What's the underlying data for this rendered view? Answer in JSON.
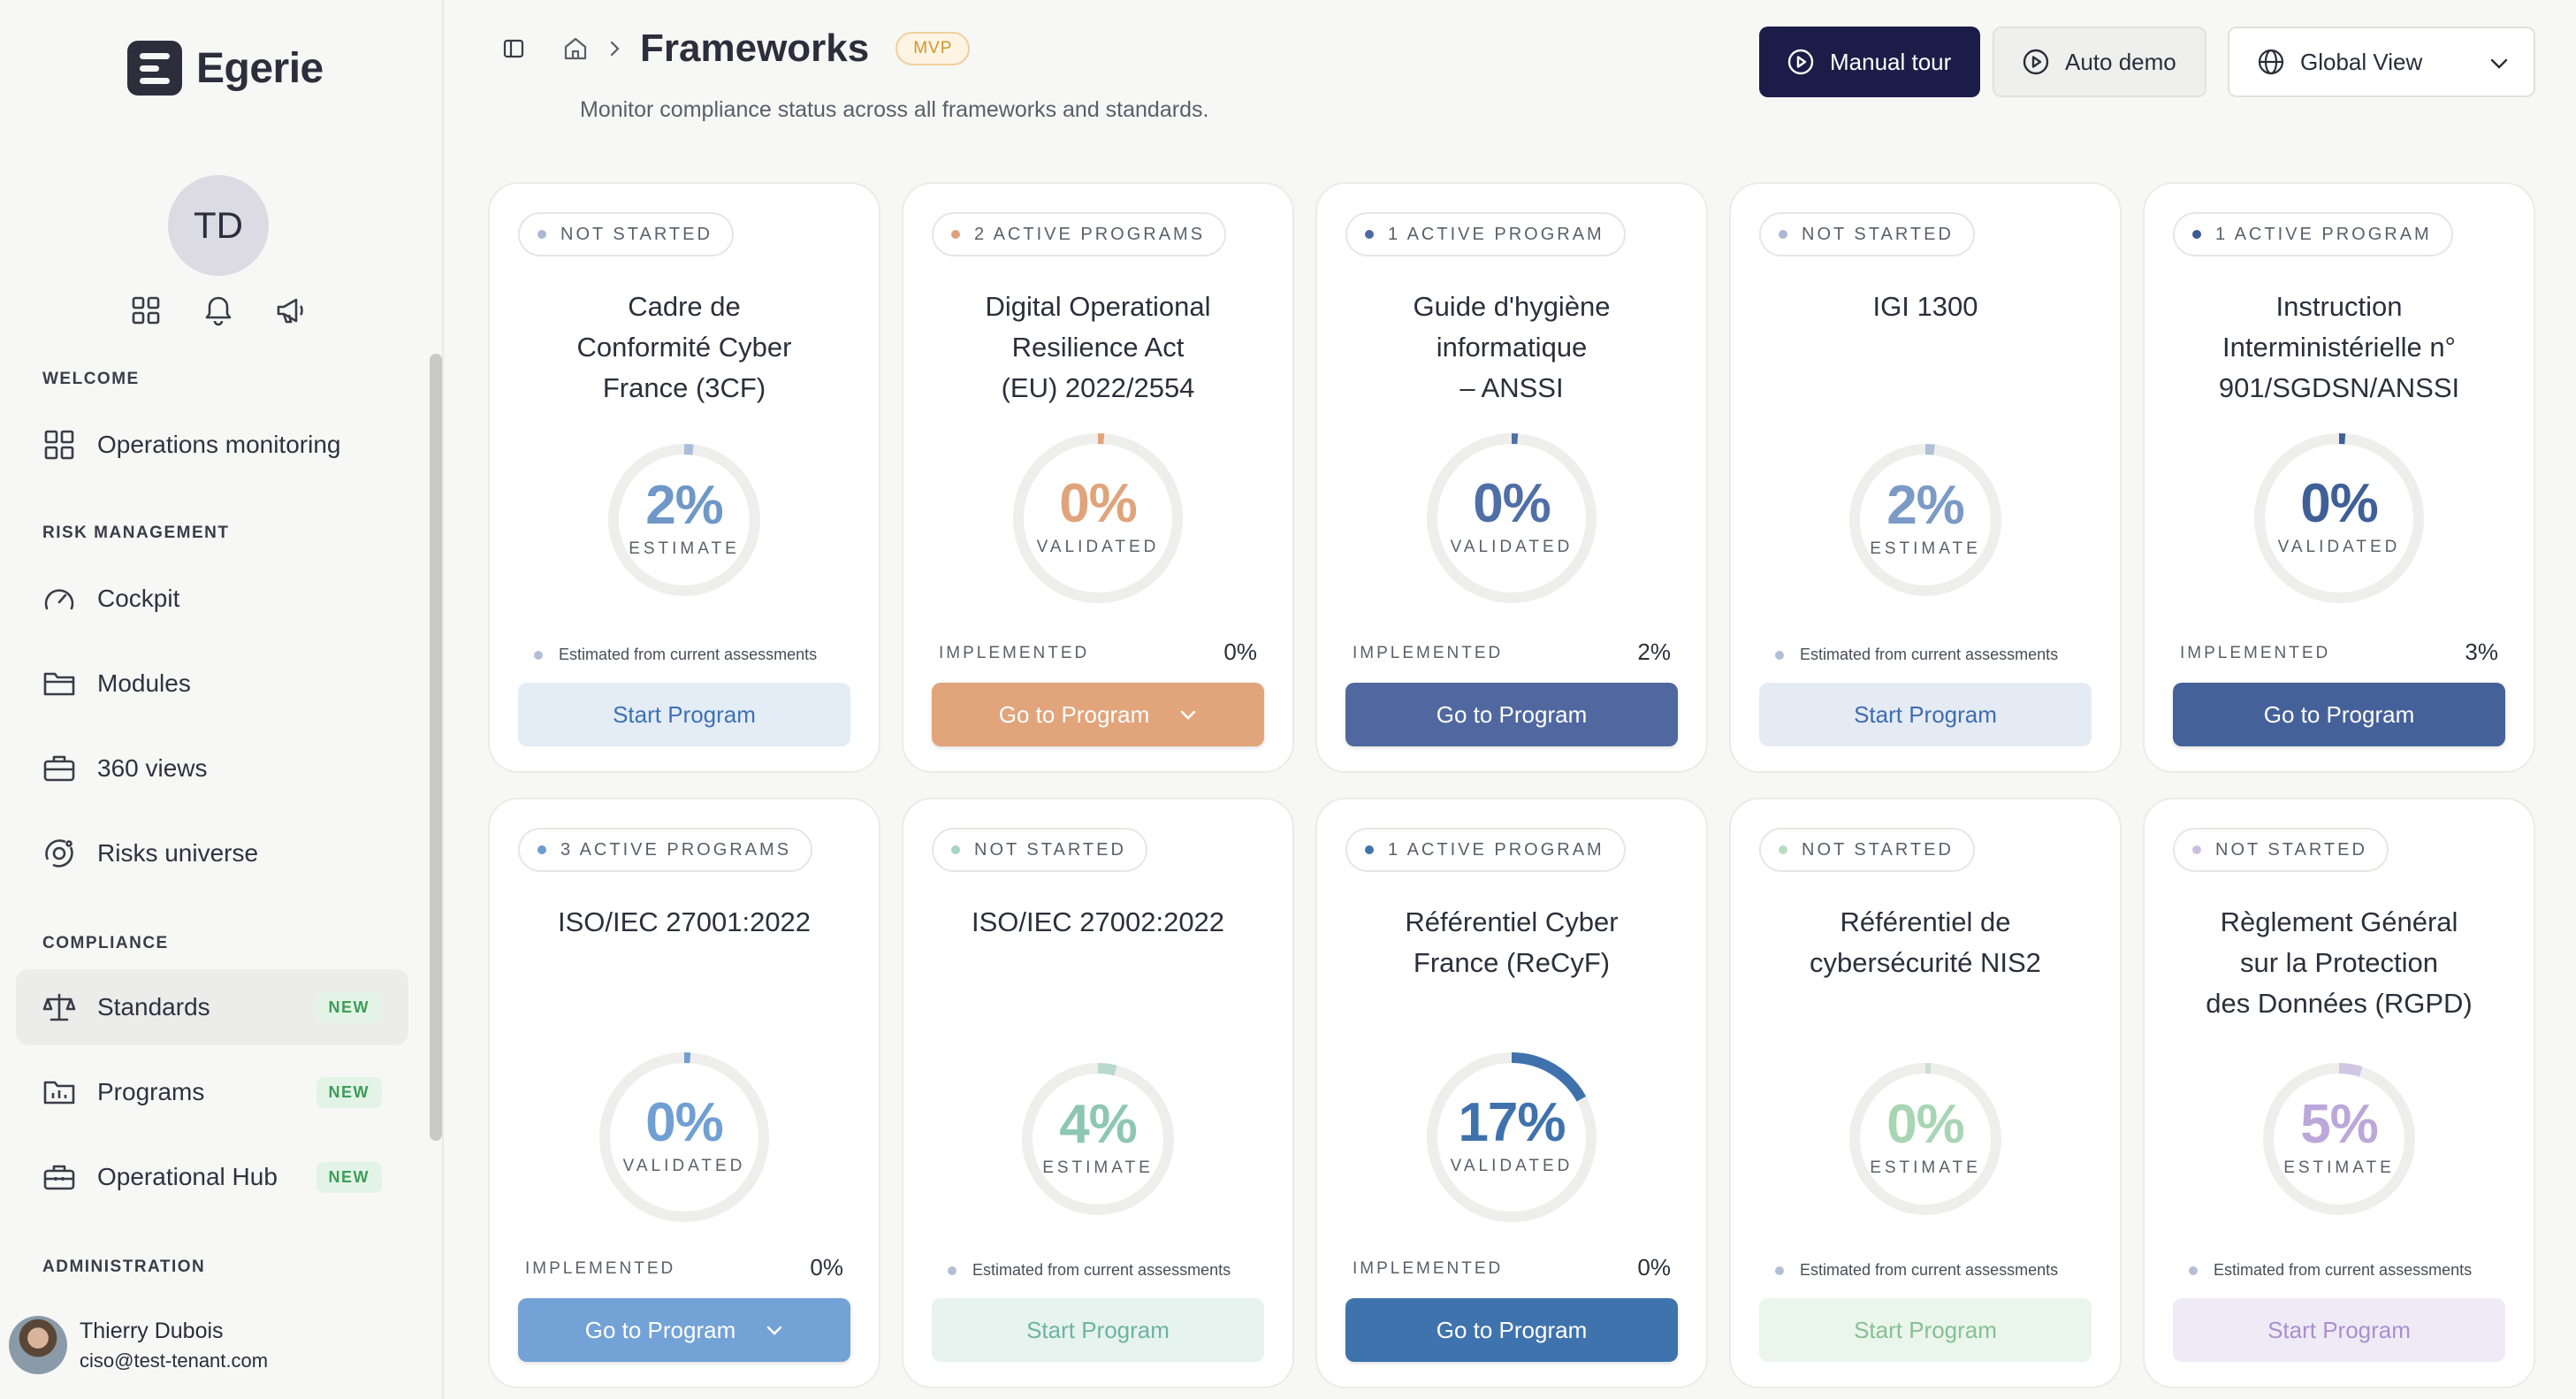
{
  "brand": {
    "name": "Egerie"
  },
  "profile": {
    "initials": "TD"
  },
  "sidebar": {
    "sections": [
      {
        "title": "WELCOME"
      },
      {
        "title": "RISK MANAGEMENT"
      },
      {
        "title": "COMPLIANCE"
      },
      {
        "title": "ADMINISTRATION"
      }
    ],
    "items": [
      {
        "label": "Operations monitoring",
        "icon": "grid-icon"
      },
      {
        "label": "Cockpit",
        "icon": "gauge-icon"
      },
      {
        "label": "Modules",
        "icon": "folder-icon"
      },
      {
        "label": "360 views",
        "icon": "briefcase-icon"
      },
      {
        "label": "Risks universe",
        "icon": "orbit-icon"
      },
      {
        "label": "Standards",
        "icon": "scale-icon",
        "badge": "NEW",
        "active": true
      },
      {
        "label": "Programs",
        "icon": "chart-folder-icon",
        "badge": "NEW"
      },
      {
        "label": "Operational Hub",
        "icon": "toolbox-icon",
        "badge": "NEW"
      }
    ]
  },
  "user": {
    "name": "Thierry Dubois",
    "email": "ciso@test-tenant.com"
  },
  "header": {
    "title": "Frameworks",
    "badge": "MVP",
    "subtitle": "Monitor compliance status across all frameworks and standards.",
    "manual_tour": "Manual tour",
    "auto_demo": "Auto demo",
    "view_select": "Global View"
  },
  "common": {
    "implemented_label": "IMPLEMENTED",
    "estimate_note": "Estimated from current assessments"
  },
  "colors": {
    "dark_navy": "#1b1d48",
    "badge_new_green": "#3e9c5a",
    "mvp_orange": "#d3952a"
  },
  "cards": [
    {
      "status": "NOT STARTED",
      "dot": "#a9b8d3",
      "title": [
        "Cadre de",
        "Conformité Cyber",
        "France (3CF)"
      ],
      "percent": "2%",
      "progress": 0.02,
      "kind": "ESTIMATE",
      "implemented": null,
      "button": "Start Program",
      "button_style": "start",
      "dropdown": false,
      "accent": "#6f97c8",
      "btn_bg": "#e4ecf6",
      "btn_fg": "#3d72b4"
    },
    {
      "status": "2 ACTIVE PROGRAMS",
      "dot": "#dea27a",
      "title": [
        "Digital Operational",
        "Resilience Act",
        "(EU) 2022/2554"
      ],
      "percent": "0%",
      "progress": 0.0,
      "kind": "VALIDATED",
      "implemented": "0%",
      "button": "Go to Program",
      "button_style": "go",
      "dropdown": true,
      "accent": "#e0a47a",
      "btn_bg": "#e1a47b",
      "btn_fg": "#ffffff"
    },
    {
      "status": "1 ACTIVE PROGRAM",
      "dot": "#4e6aa3",
      "title": [
        "Guide d'hygiène",
        "informatique",
        "– ANSSI"
      ],
      "percent": "0%",
      "progress": 0.0,
      "kind": "VALIDATED",
      "implemented": "2%",
      "button": "Go to Program",
      "button_style": "go",
      "dropdown": false,
      "accent": "#4f6fa6",
      "btn_bg": "#50689f",
      "btn_fg": "#ffffff"
    },
    {
      "status": "NOT STARTED",
      "dot": "#a9b8d3",
      "title": [
        "IGI 1300"
      ],
      "percent": "2%",
      "progress": 0.02,
      "kind": "ESTIMATE",
      "implemented": null,
      "button": "Start Program",
      "button_style": "start",
      "dropdown": false,
      "accent": "#7b9ac6",
      "btn_bg": "#e5ebf4",
      "btn_fg": "#3f6dad"
    },
    {
      "status": "1 ACTIVE PROGRAM",
      "dot": "#3d5a96",
      "title": [
        "Instruction",
        "Interministérielle n°",
        "901/SGDSN/ANSSI"
      ],
      "percent": "0%",
      "progress": 0.0,
      "kind": "VALIDATED",
      "implemented": "3%",
      "button": "Go to Program",
      "button_style": "go",
      "dropdown": false,
      "accent": "#3f5f98",
      "btn_bg": "#45619a",
      "btn_fg": "#ffffff"
    },
    {
      "status": "3 ACTIVE PROGRAMS",
      "dot": "#6d9dd2",
      "title": [
        "ISO/IEC 27001:2022"
      ],
      "percent": "0%",
      "progress": 0.0,
      "kind": "VALIDATED",
      "implemented": "0%",
      "button": "Go to Program",
      "button_style": "go",
      "dropdown": true,
      "accent": "#6f9fd3",
      "btn_bg": "#73a2d6",
      "btn_fg": "#ffffff"
    },
    {
      "status": "NOT STARTED",
      "dot": "#a6d4c6",
      "title": [
        "ISO/IEC 27002:2022"
      ],
      "percent": "4%",
      "progress": 0.04,
      "kind": "ESTIMATE",
      "implemented": null,
      "button": "Start Program",
      "button_style": "start",
      "dropdown": false,
      "accent": "#8ec6b4",
      "btn_bg": "#e6f3ef",
      "btn_fg": "#6fb39e"
    },
    {
      "status": "1 ACTIVE PROGRAM",
      "dot": "#3f74ad",
      "title": [
        "Référentiel Cyber",
        "France (ReCyF)"
      ],
      "percent": "17%",
      "progress": 0.17,
      "kind": "VALIDATED",
      "implemented": "0%",
      "button": "Go to Program",
      "button_style": "go",
      "dropdown": false,
      "accent": "#3f72ad",
      "btn_bg": "#3f73ad",
      "btn_fg": "#ffffff"
    },
    {
      "status": "NOT STARTED",
      "dot": "#b8dcc0",
      "title": [
        "Référentiel de",
        "cybersécurité NIS2"
      ],
      "percent": "0%",
      "progress": 0.0,
      "kind": "ESTIMATE",
      "implemented": null,
      "button": "Start Program",
      "button_style": "start",
      "dropdown": false,
      "accent": "#a8d5b3",
      "btn_bg": "#eaf5ec",
      "btn_fg": "#86c093"
    },
    {
      "status": "NOT STARTED",
      "dot": "#cdbfe0",
      "title": [
        "Règlement Général",
        "sur la Protection",
        "des Données (RGPD)"
      ],
      "percent": "5%",
      "progress": 0.05,
      "kind": "ESTIMATE",
      "implemented": null,
      "button": "Start Program",
      "button_style": "start",
      "dropdown": false,
      "accent": "#bca7da",
      "btn_bg": "#efebf6",
      "btn_fg": "#a890cc"
    }
  ]
}
